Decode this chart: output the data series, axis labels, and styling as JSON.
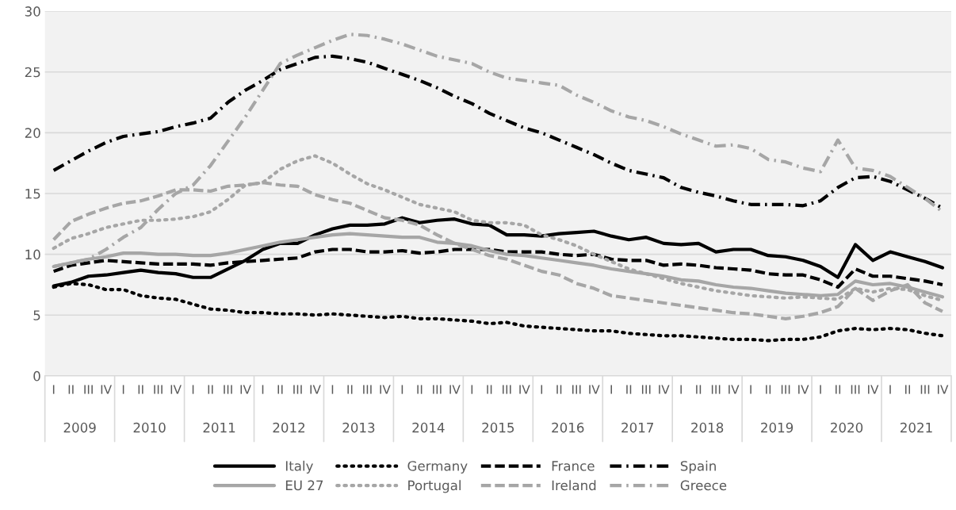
{
  "chart_data": {
    "type": "line",
    "categories": [
      "I",
      "II",
      "III",
      "IV",
      "I",
      "II",
      "III",
      "IV",
      "I",
      "II",
      "III",
      "IV",
      "I",
      "II",
      "III",
      "IV",
      "I",
      "II",
      "III",
      "IV",
      "I",
      "II",
      "III",
      "IV",
      "I",
      "II",
      "III",
      "IV",
      "I",
      "II",
      "III",
      "IV",
      "I",
      "II",
      "III",
      "IV",
      "I",
      "II",
      "III",
      "IV",
      "I",
      "II",
      "III",
      "IV",
      "I",
      "II",
      "III",
      "IV",
      "I",
      "II",
      "III",
      "IV"
    ],
    "annotations": [
      "2009",
      "2010",
      "2011",
      "2012",
      "2013",
      "2014",
      "2015",
      "2016",
      "2017",
      "2018",
      "2019",
      "2020",
      "2021"
    ],
    "ylim": [
      0,
      30
    ],
    "yticks": [
      0,
      5,
      10,
      15,
      20,
      25,
      30
    ],
    "grid": "y",
    "legend": "bottom",
    "marker": "none",
    "series": [
      {
        "name": "Italy",
        "color": "#000000",
        "line_style": "solid",
        "values": [
          7.4,
          7.7,
          8.2,
          8.3,
          8.5,
          8.7,
          8.5,
          8.4,
          8.1,
          8.1,
          8.8,
          9.5,
          10.4,
          10.9,
          10.9,
          11.6,
          12.1,
          12.4,
          12.4,
          12.5,
          13.0,
          12.6,
          12.8,
          12.9,
          12.5,
          12.4,
          11.6,
          11.6,
          11.5,
          11.7,
          11.8,
          11.9,
          11.5,
          11.2,
          11.4,
          10.9,
          10.8,
          10.9,
          10.2,
          10.4,
          10.4,
          9.9,
          9.8,
          9.5,
          9.0,
          8.1,
          10.8,
          9.5,
          10.2,
          9.8,
          9.4,
          8.9
        ]
      },
      {
        "name": "Germany",
        "color": "#000000",
        "line_style": "dotted",
        "values": [
          7.3,
          7.6,
          7.5,
          7.1,
          7.1,
          6.6,
          6.4,
          6.3,
          5.9,
          5.5,
          5.4,
          5.2,
          5.2,
          5.1,
          5.1,
          5.0,
          5.1,
          5.0,
          4.9,
          4.8,
          4.9,
          4.7,
          4.7,
          4.6,
          4.5,
          4.3,
          4.4,
          4.1,
          4.0,
          3.9,
          3.8,
          3.7,
          3.7,
          3.5,
          3.4,
          3.3,
          3.3,
          3.2,
          3.1,
          3.0,
          3.0,
          2.9,
          3.0,
          3.0,
          3.2,
          3.7,
          3.9,
          3.8,
          3.9,
          3.8,
          3.5,
          3.3
        ]
      },
      {
        "name": "France",
        "color": "#000000",
        "line_style": "dashed",
        "values": [
          8.6,
          9.1,
          9.3,
          9.5,
          9.4,
          9.3,
          9.2,
          9.2,
          9.2,
          9.1,
          9.3,
          9.4,
          9.5,
          9.6,
          9.7,
          10.2,
          10.4,
          10.4,
          10.2,
          10.2,
          10.3,
          10.1,
          10.2,
          10.4,
          10.4,
          10.4,
          10.2,
          10.2,
          10.2,
          10.0,
          9.9,
          10.0,
          9.6,
          9.5,
          9.5,
          9.1,
          9.2,
          9.1,
          8.9,
          8.8,
          8.7,
          8.4,
          8.3,
          8.3,
          7.9,
          7.3,
          8.8,
          8.2,
          8.2,
          8.0,
          7.8,
          7.5
        ]
      },
      {
        "name": "Spain",
        "color": "#000000",
        "line_style": "dashdot",
        "values": [
          16.9,
          17.7,
          18.5,
          19.2,
          19.7,
          19.9,
          20.1,
          20.5,
          20.8,
          21.2,
          22.5,
          23.5,
          24.3,
          25.2,
          25.7,
          26.2,
          26.3,
          26.1,
          25.8,
          25.3,
          24.8,
          24.3,
          23.7,
          23.0,
          22.4,
          21.6,
          21.0,
          20.4,
          20.0,
          19.4,
          18.8,
          18.2,
          17.5,
          16.9,
          16.6,
          16.3,
          15.5,
          15.1,
          14.8,
          14.4,
          14.1,
          14.1,
          14.1,
          14.0,
          14.4,
          15.5,
          16.3,
          16.4,
          16.0,
          15.3,
          14.6,
          13.8
        ]
      },
      {
        "name": "EU 27",
        "color": "#a6a6a6",
        "line_style": "solid",
        "values": [
          9.0,
          9.3,
          9.6,
          9.8,
          10.1,
          10.1,
          10.0,
          10.0,
          9.9,
          9.9,
          10.1,
          10.4,
          10.7,
          11.0,
          11.2,
          11.4,
          11.6,
          11.7,
          11.6,
          11.5,
          11.4,
          11.4,
          11.0,
          10.9,
          10.7,
          10.3,
          10.0,
          9.9,
          9.7,
          9.5,
          9.3,
          9.1,
          8.8,
          8.6,
          8.4,
          8.2,
          7.9,
          7.8,
          7.5,
          7.3,
          7.2,
          7.0,
          6.8,
          6.7,
          6.6,
          6.7,
          7.8,
          7.5,
          7.6,
          7.3,
          6.9,
          6.5
        ]
      },
      {
        "name": "Portugal",
        "color": "#a6a6a6",
        "line_style": "dotted",
        "values": [
          10.5,
          11.3,
          11.7,
          12.2,
          12.5,
          12.8,
          12.8,
          12.9,
          13.1,
          13.5,
          14.5,
          15.7,
          15.9,
          17.0,
          17.7,
          18.1,
          17.5,
          16.6,
          15.8,
          15.3,
          14.7,
          14.1,
          13.8,
          13.5,
          12.8,
          12.6,
          12.6,
          12.4,
          11.6,
          11.2,
          10.7,
          10.0,
          9.4,
          8.8,
          8.4,
          8.0,
          7.6,
          7.3,
          7.0,
          6.8,
          6.6,
          6.5,
          6.4,
          6.5,
          6.4,
          6.3,
          7.2,
          6.9,
          7.2,
          7.1,
          6.6,
          6.2
        ]
      },
      {
        "name": "Ireland",
        "color": "#a6a6a6",
        "line_style": "dashed",
        "values": [
          11.2,
          12.7,
          13.3,
          13.8,
          14.2,
          14.4,
          14.8,
          15.3,
          15.3,
          15.2,
          15.6,
          15.7,
          15.9,
          15.7,
          15.6,
          14.9,
          14.5,
          14.2,
          13.6,
          13.0,
          12.8,
          12.4,
          11.6,
          10.9,
          10.4,
          9.9,
          9.6,
          9.1,
          8.6,
          8.3,
          7.6,
          7.2,
          6.6,
          6.4,
          6.2,
          6.0,
          5.8,
          5.6,
          5.4,
          5.2,
          5.1,
          4.9,
          4.7,
          4.9,
          5.2,
          5.7,
          7.2,
          6.2,
          7.0,
          7.5,
          6.0,
          5.3
        ]
      },
      {
        "name": "Greece",
        "color": "#a6a6a6",
        "line_style": "dashdot",
        "values": [
          9.0,
          9.3,
          9.6,
          10.4,
          11.4,
          12.2,
          13.7,
          15.0,
          15.7,
          17.3,
          19.3,
          21.3,
          23.5,
          25.7,
          26.4,
          27.0,
          27.6,
          28.1,
          28.0,
          27.7,
          27.3,
          26.8,
          26.3,
          26.0,
          25.7,
          25.0,
          24.5,
          24.3,
          24.1,
          23.9,
          23.1,
          22.5,
          21.8,
          21.3,
          21.0,
          20.5,
          19.9,
          19.4,
          18.9,
          19.0,
          18.7,
          17.8,
          17.6,
          17.1,
          16.8,
          19.4,
          17.1,
          16.9,
          16.4,
          15.5,
          14.6,
          13.5
        ]
      }
    ]
  }
}
